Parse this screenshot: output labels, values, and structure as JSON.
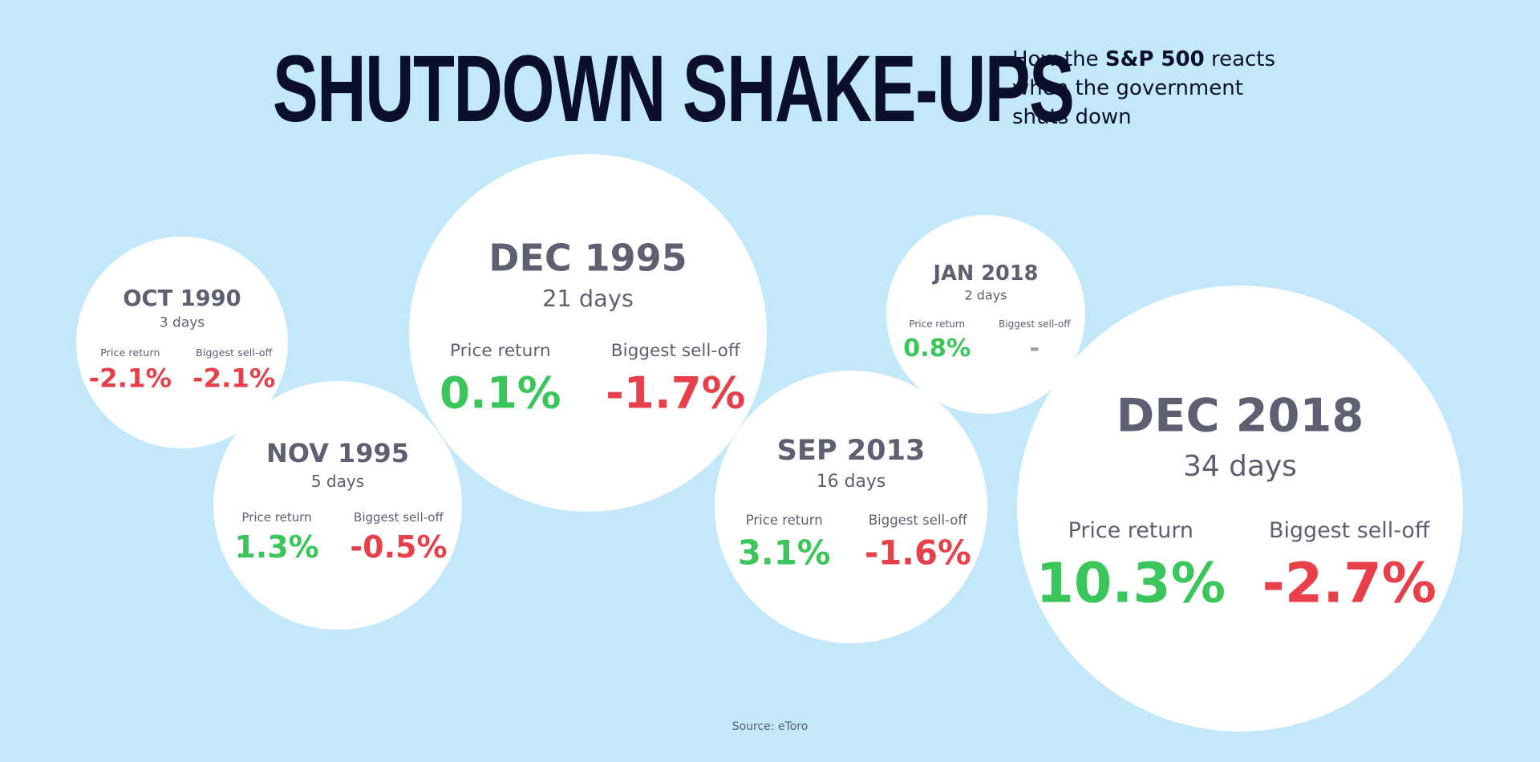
{
  "colors": {
    "background": "#c2e8fa",
    "bubble": "#ffffff",
    "heading_text": "#5e6072",
    "label_text": "#5e6072",
    "positive": "#3ac65a",
    "negative": "#e8404a",
    "neutral": "#9a9ca8"
  },
  "header": {
    "title": "SHUTDOWN SHAKE-UPS",
    "subtitle_pre": "How the ",
    "subtitle_bold": "S&P 500",
    "subtitle_post": " reacts when the government shuts down"
  },
  "footer": {
    "source": "Source:  eToro"
  },
  "chart_data": {
    "type": "bubble",
    "size_encoding": "shutdown length in days",
    "metric_labels": {
      "price_return": "Price return",
      "sell_off": "Biggest sell-off"
    },
    "shutdowns": [
      {
        "period": "OCT 1990",
        "duration_label": "3 days",
        "days": 3,
        "price_return": -2.1,
        "price_return_label": "-2.1%",
        "biggest_selloff": -2.1,
        "biggest_selloff_label": "-2.1%"
      },
      {
        "period": "NOV 1995",
        "duration_label": "5 days",
        "days": 5,
        "price_return": 1.3,
        "price_return_label": "1.3%",
        "biggest_selloff": -0.5,
        "biggest_selloff_label": "-0.5%"
      },
      {
        "period": "DEC 1995",
        "duration_label": "21 days",
        "days": 21,
        "price_return": 0.1,
        "price_return_label": "0.1%",
        "biggest_selloff": -1.7,
        "biggest_selloff_label": "-1.7%"
      },
      {
        "period": "SEP 2013",
        "duration_label": "16 days",
        "days": 16,
        "price_return": 3.1,
        "price_return_label": "3.1%",
        "biggest_selloff": -1.6,
        "biggest_selloff_label": "-1.6%"
      },
      {
        "period": "JAN 2018",
        "duration_label": "2 days",
        "days": 2,
        "price_return": 0.8,
        "price_return_label": "0.8%",
        "biggest_selloff": null,
        "biggest_selloff_label": "-"
      },
      {
        "period": "DEC 2018",
        "duration_label": "34 days",
        "days": 34,
        "price_return": 10.3,
        "price_return_label": "10.3%",
        "biggest_selloff": -2.7,
        "biggest_selloff_label": "-2.7%"
      }
    ]
  }
}
